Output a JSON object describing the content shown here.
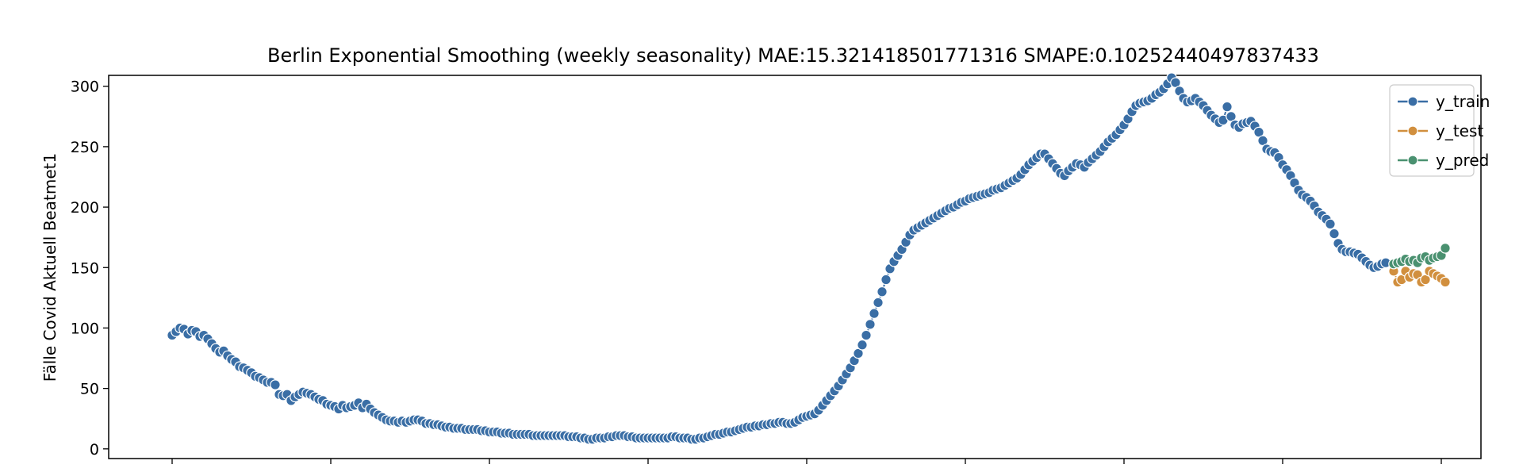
{
  "chart_data": {
    "type": "line",
    "title": "Berlin Exponential Smoothing (weekly seasonality)  MAE:15.321418501771316  SMAPE:0.10252440497837433",
    "xlabel": "",
    "ylabel": "Fälle Covid Aktuell Beatmet1",
    "ylim": [
      -8,
      309
    ],
    "yticks": [
      0,
      50,
      100,
      150,
      200,
      250,
      300
    ],
    "xlim": [
      -16,
      330
    ],
    "x_ticks_count": 9,
    "x_tick_labels_visible": false,
    "grid": false,
    "legend_position": "top-right",
    "marker": "circle",
    "series": [
      {
        "name": "y_train",
        "color": "#3a6ea5",
        "x_start": 0,
        "values": [
          94,
          97,
          100,
          99,
          95,
          98,
          97,
          93,
          94,
          91,
          87,
          83,
          80,
          81,
          77,
          74,
          72,
          68,
          67,
          65,
          63,
          60,
          59,
          57,
          55,
          55,
          53,
          45,
          44,
          45,
          40,
          43,
          45,
          47,
          46,
          45,
          43,
          41,
          40,
          37,
          36,
          35,
          33,
          36,
          34,
          35,
          36,
          38,
          34,
          37,
          33,
          30,
          28,
          26,
          24,
          23,
          23,
          22,
          23,
          22,
          23,
          24,
          24,
          23,
          21,
          21,
          20,
          20,
          19,
          18,
          18,
          17,
          17,
          17,
          16,
          16,
          16,
          16,
          15,
          15,
          14,
          14,
          14,
          13,
          13,
          13,
          12,
          12,
          12,
          12,
          12,
          11,
          11,
          11,
          11,
          11,
          11,
          11,
          11,
          11,
          10,
          10,
          10,
          9,
          9,
          8,
          8,
          9,
          9,
          9,
          10,
          10,
          11,
          11,
          11,
          10,
          10,
          9,
          9,
          9,
          9,
          9,
          9,
          9,
          9,
          9,
          10,
          10,
          9,
          9,
          9,
          8,
          8,
          9,
          9,
          10,
          11,
          12,
          12,
          13,
          14,
          14,
          15,
          16,
          17,
          18,
          18,
          19,
          19,
          20,
          20,
          21,
          21,
          22,
          22,
          21,
          21,
          22,
          24,
          26,
          27,
          28,
          29,
          32,
          36,
          40,
          44,
          48,
          52,
          57,
          62,
          67,
          73,
          79,
          86,
          94,
          103,
          112,
          121,
          130,
          140,
          149,
          155,
          160,
          165,
          171,
          177,
          181,
          183,
          185,
          187,
          189,
          191,
          193,
          195,
          197,
          199,
          200,
          202,
          204,
          205,
          207,
          208,
          209,
          210,
          211,
          212,
          214,
          215,
          216,
          218,
          220,
          222,
          224,
          227,
          231,
          235,
          238,
          241,
          244,
          244,
          240,
          236,
          232,
          228,
          226,
          230,
          233,
          236,
          235,
          233,
          237,
          240,
          243,
          246,
          250,
          254,
          257,
          260,
          264,
          268,
          273,
          279,
          284,
          286,
          287,
          288,
          290,
          293,
          295,
          298,
          302,
          307,
          303,
          296,
          290,
          287,
          288,
          290,
          287,
          284,
          280,
          276,
          273,
          270,
          272,
          283,
          275,
          268,
          266,
          269,
          270,
          271,
          267,
          262,
          255,
          248,
          246,
          245,
          241,
          235,
          231,
          226,
          220,
          214,
          210,
          208,
          205,
          201,
          196,
          193,
          190,
          186,
          178,
          170,
          165,
          163,
          163,
          162,
          161,
          158,
          155,
          152,
          150,
          151,
          153,
          154
        ]
      },
      {
        "name": "y_test",
        "color": "#d18f3e",
        "x_start": 308,
        "values": [
          147,
          138,
          140,
          147,
          142,
          145,
          144,
          138,
          140,
          147,
          145,
          143,
          141,
          138
        ]
      },
      {
        "name": "y_pred",
        "color": "#4a9170",
        "x_start": 308,
        "values": [
          153,
          154,
          155,
          157,
          155,
          156,
          154,
          158,
          159,
          156,
          158,
          159,
          160,
          166
        ]
      }
    ]
  }
}
